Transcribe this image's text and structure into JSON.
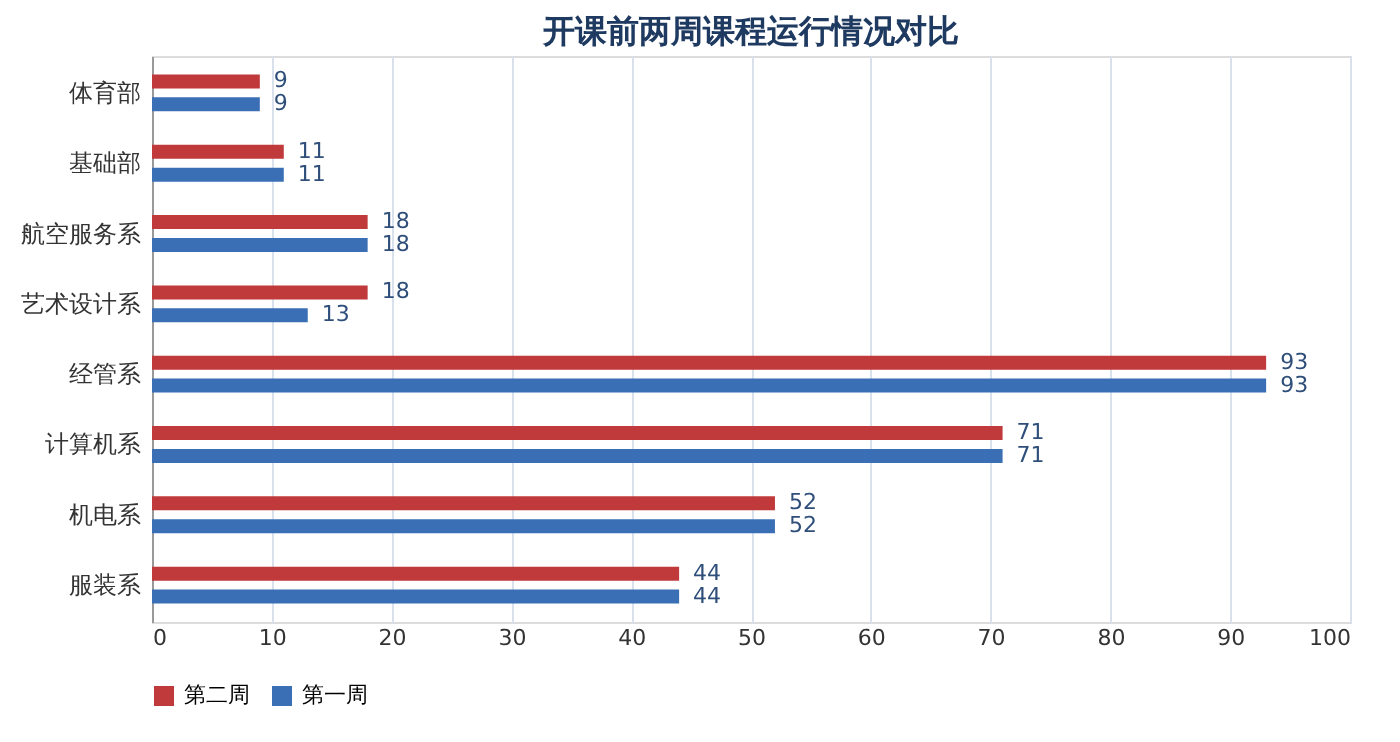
{
  "chart_data": {
    "type": "bar",
    "orientation": "horizontal",
    "title": "开课前两周课程运行情况对比",
    "categories": [
      "体育部",
      "基础部",
      "航空服务系",
      "艺术设计系",
      "经管系",
      "计算机系",
      "机电系",
      "服装系"
    ],
    "series": [
      {
        "name": "第二周",
        "color": "#c0393b",
        "values": [
          9,
          11,
          18,
          18,
          93,
          71,
          52,
          44
        ]
      },
      {
        "name": "第一周",
        "color": "#3a6fb5",
        "values": [
          9,
          11,
          18,
          13,
          93,
          71,
          52,
          44
        ]
      }
    ],
    "xlim": [
      0,
      100
    ],
    "xticks": [
      0,
      10,
      20,
      30,
      40,
      50,
      60,
      70,
      80,
      90,
      100
    ],
    "grid": "x",
    "legend": "bottom",
    "data_labels": true
  }
}
